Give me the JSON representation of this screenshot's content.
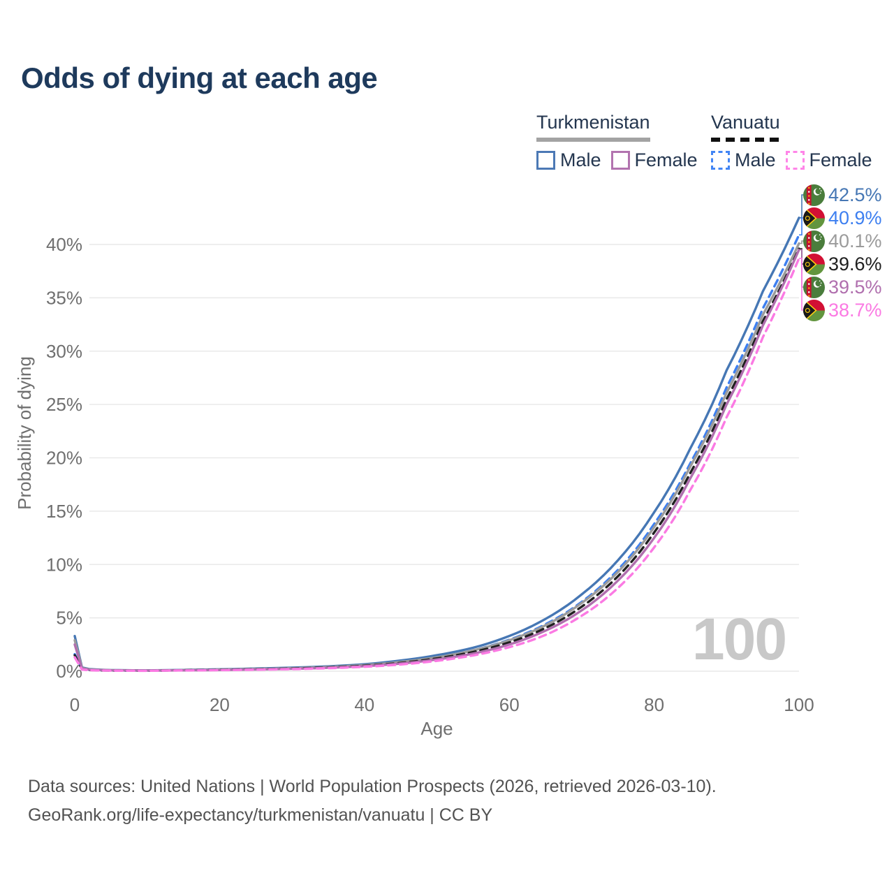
{
  "title": "Odds of dying at each age",
  "legend": {
    "groups": [
      {
        "title": "Turkmenistan",
        "line_style": "solid",
        "underline_color": "#A3A3A3",
        "items": [
          {
            "label": "Male",
            "color": "#4C79B5"
          },
          {
            "label": "Female",
            "color": "#B273AF"
          }
        ]
      },
      {
        "title": "Vanuatu",
        "line_style": "dashed",
        "underline_color": "#111111",
        "items": [
          {
            "label": "Male",
            "color": "#4285F4"
          },
          {
            "label": "Female",
            "color": "#FF85E8"
          }
        ]
      }
    ]
  },
  "chart_data": {
    "type": "line",
    "title": "Odds of dying at each age",
    "xlabel": "Age",
    "ylabel": "Probability of dying",
    "xlim": [
      0,
      100
    ],
    "ylim": [
      0,
      43.5
    ],
    "x_ticks": [
      0,
      20,
      40,
      60,
      80,
      100
    ],
    "y_ticks": [
      0,
      5,
      10,
      15,
      20,
      25,
      30,
      35,
      40
    ],
    "y_tick_suffix": "%",
    "grid": "horizontal only",
    "legend_position": "top-right",
    "watermark": "100",
    "x": [
      0,
      1,
      2,
      5,
      10,
      15,
      20,
      25,
      30,
      35,
      40,
      45,
      50,
      55,
      60,
      65,
      70,
      75,
      80,
      85,
      90,
      95,
      100
    ],
    "series": [
      {
        "name": "Turkmenistan Male",
        "country": "Turkmenistan",
        "sex": "Male",
        "color": "#4677B4",
        "dash": false,
        "end_label": "42.5%",
        "values": [
          3.3,
          0.35,
          0.2,
          0.1,
          0.08,
          0.12,
          0.18,
          0.25,
          0.33,
          0.45,
          0.65,
          1.0,
          1.5,
          2.2,
          3.3,
          4.9,
          7.2,
          10.4,
          14.9,
          20.9,
          28.2,
          35.6,
          42.5
        ]
      },
      {
        "name": "Vanuatu Male",
        "country": "Vanuatu",
        "sex": "Male",
        "color": "#3D7FF0",
        "dash": true,
        "end_label": "40.9%",
        "values": [
          1.6,
          0.2,
          0.12,
          0.07,
          0.06,
          0.1,
          0.15,
          0.21,
          0.28,
          0.38,
          0.56,
          0.86,
          1.3,
          1.95,
          2.95,
          4.4,
          6.5,
          9.5,
          13.8,
          19.5,
          26.6,
          34.0,
          40.9
        ]
      },
      {
        "name": "Turkmenistan Both sexes",
        "country": "Turkmenistan",
        "sex": "Both",
        "color": "#9B9B9B",
        "dash": false,
        "end_label": "40.1%",
        "values": [
          2.9,
          0.3,
          0.17,
          0.09,
          0.07,
          0.1,
          0.15,
          0.21,
          0.28,
          0.39,
          0.57,
          0.87,
          1.3,
          1.95,
          2.9,
          4.3,
          6.4,
          9.3,
          13.5,
          19.2,
          26.1,
          33.4,
          40.1
        ]
      },
      {
        "name": "Vanuatu Both sexes",
        "country": "Vanuatu",
        "sex": "Both",
        "color": "#202020",
        "dash": true,
        "end_label": "39.6%",
        "values": [
          1.5,
          0.18,
          0.11,
          0.06,
          0.05,
          0.09,
          0.13,
          0.18,
          0.25,
          0.35,
          0.51,
          0.78,
          1.2,
          1.8,
          2.7,
          4.05,
          6.05,
          8.9,
          13.0,
          18.6,
          25.5,
          32.8,
          39.6
        ]
      },
      {
        "name": "Turkmenistan Female",
        "country": "Turkmenistan",
        "sex": "Female",
        "color": "#B06FAE",
        "dash": false,
        "end_label": "39.5%",
        "values": [
          2.5,
          0.25,
          0.14,
          0.08,
          0.06,
          0.08,
          0.11,
          0.16,
          0.22,
          0.32,
          0.47,
          0.72,
          1.1,
          1.65,
          2.5,
          3.8,
          5.7,
          8.5,
          12.5,
          18.1,
          25.0,
          32.4,
          39.5
        ]
      },
      {
        "name": "Vanuatu Female",
        "country": "Vanuatu",
        "sex": "Female",
        "color": "#FB7AE3",
        "dash": true,
        "end_label": "38.7%",
        "values": [
          1.3,
          0.15,
          0.09,
          0.05,
          0.04,
          0.07,
          0.1,
          0.14,
          0.19,
          0.28,
          0.41,
          0.63,
          0.97,
          1.48,
          2.25,
          3.4,
          5.2,
          7.8,
          11.6,
          17.0,
          23.8,
          31.3,
          38.7
        ]
      }
    ]
  },
  "colors": {
    "title": "#1E3A5C",
    "axis_text": "#6F6F6F",
    "grid": "#E9E9E9",
    "watermark": "#C8C8C8",
    "footer": "#525252"
  },
  "footer": {
    "line1": "Data sources: United Nations | World Population Prospects (2026, retrieved 2026-03-10).",
    "line2": "GeoRank.org/life-expectancy/turkmenistan/vanuatu | CC BY"
  }
}
